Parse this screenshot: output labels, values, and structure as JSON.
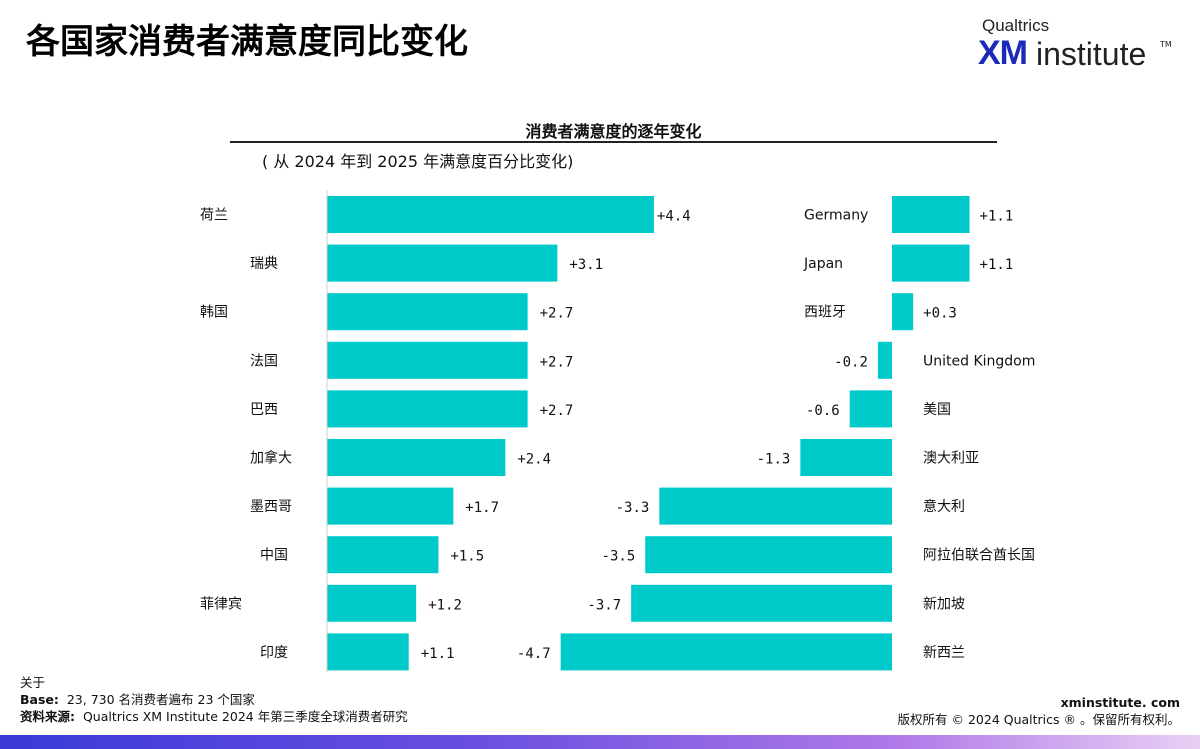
{
  "page": {
    "title": "各国家消费者满意度同比变化"
  },
  "logo": {
    "top_text": "Qualtrics",
    "xm": "XM",
    "institute": "institute",
    "tm": "TM"
  },
  "chart_data": {
    "type": "bar",
    "orientation": "horizontal",
    "title": "消费者满意度的逐年变化",
    "subtitle": "( 从 2024 年到 2025 年满意度百分比变化)",
    "bar_color": "#00C9C9",
    "panels": [
      {
        "categories": [
          "荷兰",
          "瑞典",
          "韩国",
          "法国",
          "巴西",
          "加拿大",
          "墨西哥",
          "中国",
          "菲律宾",
          "印度"
        ],
        "values": [
          4.4,
          3.1,
          2.7,
          2.7,
          2.7,
          2.4,
          1.7,
          1.5,
          1.2,
          1.1
        ],
        "value_labels": [
          "+4.4",
          "+3.1",
          "+2.7",
          "+2.7",
          "+2.7",
          "+2.4",
          "+1.7",
          "+1.5",
          "+1.2",
          "+1.1"
        ]
      },
      {
        "categories": [
          "Germany",
          "Japan",
          "西班牙",
          "United Kingdom",
          "美国",
          "澳大利亚",
          "意大利",
          "阿拉伯联合酋长国",
          "新加坡",
          "新西兰"
        ],
        "values": [
          1.1,
          1.1,
          0.3,
          -0.2,
          -0.6,
          -1.3,
          -3.3,
          -3.5,
          -3.7,
          -4.7
        ],
        "value_labels": [
          "+1.1",
          "+1.1",
          "+0.3",
          "-0.2",
          "-0.6",
          "-1.3",
          "-3.3",
          "-3.5",
          "-3.7",
          "-4.7"
        ]
      }
    ]
  },
  "footer": {
    "about": "关于",
    "base_label": "Base:",
    "base_text": "23, 730 名消费者遍布 23 个国家",
    "source_label": "资料来源:",
    "source_text": "Qualtrics XM Institute 2024 年第三季度全球消费者研究",
    "site": "xminstitute. com",
    "copyright": "版权所有 © 2024 Qualtrics ® 。保留所有权利。"
  }
}
